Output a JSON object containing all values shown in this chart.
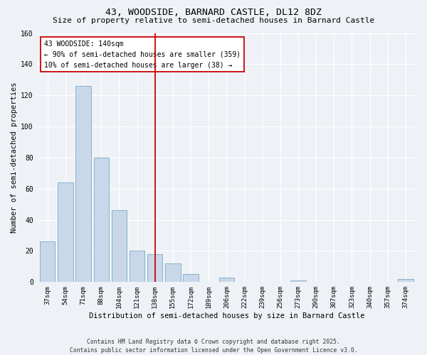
{
  "title": "43, WOODSIDE, BARNARD CASTLE, DL12 8DZ",
  "subtitle": "Size of property relative to semi-detached houses in Barnard Castle",
  "xlabel": "Distribution of semi-detached houses by size in Barnard Castle",
  "ylabel": "Number of semi-detached properties",
  "footnote1": "Contains HM Land Registry data © Crown copyright and database right 2025.",
  "footnote2": "Contains public sector information licensed under the Open Government Licence v3.0.",
  "bar_labels": [
    "37sqm",
    "54sqm",
    "71sqm",
    "88sqm",
    "104sqm",
    "121sqm",
    "138sqm",
    "155sqm",
    "172sqm",
    "189sqm",
    "206sqm",
    "222sqm",
    "239sqm",
    "256sqm",
    "273sqm",
    "290sqm",
    "307sqm",
    "323sqm",
    "340sqm",
    "357sqm",
    "374sqm"
  ],
  "bar_values": [
    26,
    64,
    126,
    80,
    46,
    20,
    18,
    12,
    5,
    0,
    3,
    0,
    0,
    0,
    1,
    0,
    0,
    0,
    0,
    0,
    2
  ],
  "bar_color": "#c8d8ea",
  "bar_edge_color": "#7aaabf",
  "vline_x_index": 6,
  "vline_color": "#cc0000",
  "annotation_line1": "43 WOODSIDE: 140sqm",
  "annotation_line2": "← 90% of semi-detached houses are smaller (359)",
  "annotation_line3": "10% of semi-detached houses are larger (38) →",
  "annotation_box_color": "#cc0000",
  "ylim": [
    0,
    160
  ],
  "yticks": [
    0,
    20,
    40,
    60,
    80,
    100,
    120,
    140,
    160
  ],
  "background_color": "#eef2f7",
  "grid_color": "#ffffff",
  "title_fontsize": 9.5,
  "subtitle_fontsize": 8,
  "axis_label_fontsize": 7.5,
  "tick_fontsize": 6.5,
  "annotation_fontsize": 7,
  "footnote_fontsize": 5.8
}
